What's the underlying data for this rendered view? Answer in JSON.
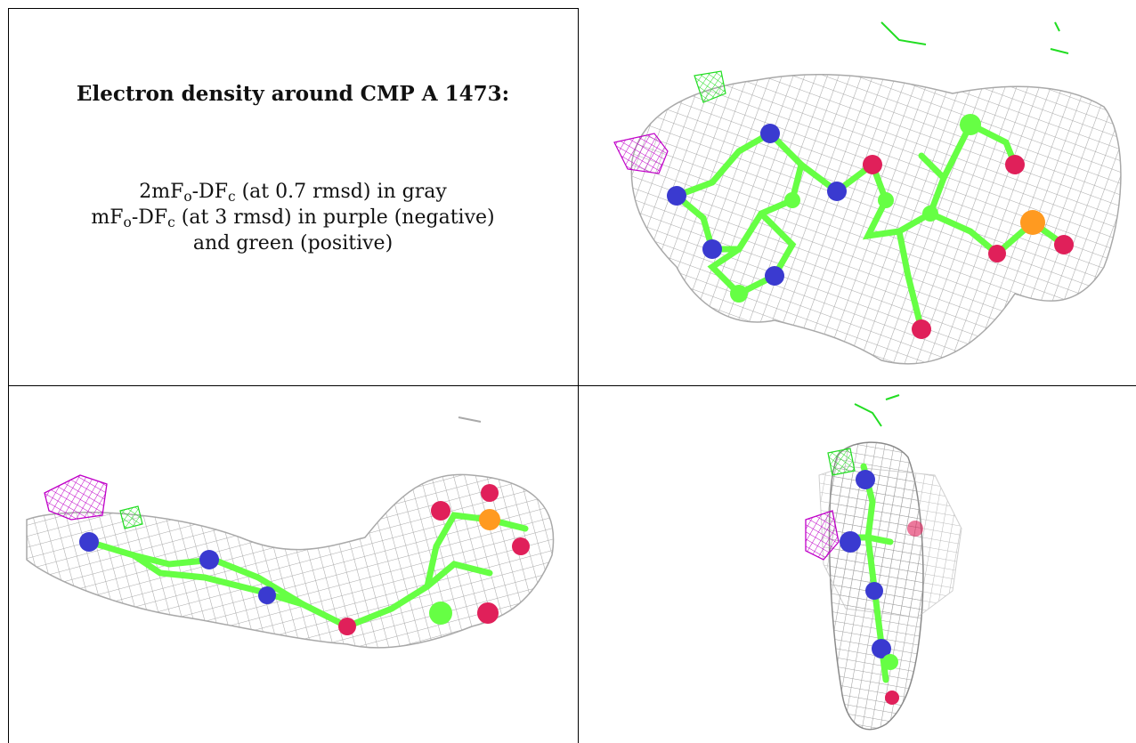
{
  "caption": {
    "title": "Electron density around CMP A 1473:",
    "line1_lead": "2mF",
    "line1_sub1": "o",
    "line1_mid": "-DF",
    "line1_sub2": "c",
    "line1_tail": " (at 0.7 rmsd) in gray",
    "line2_lead": "mF",
    "line2_sub1": "o",
    "line2_mid": "-DF",
    "line2_sub2": "c",
    "line2_tail": " (at 3 rmsd) in purple (negative)",
    "line3": "and green (positive)"
  },
  "colors": {
    "mesh_gray": "#a9a9a9",
    "difference_negative": "#c000c8",
    "difference_positive": "#22dd22",
    "carbon": "#66ff44",
    "nitrogen": "#3a3ad0",
    "oxygen": "#e0205a",
    "phosphorus": "#ff9a20"
  }
}
